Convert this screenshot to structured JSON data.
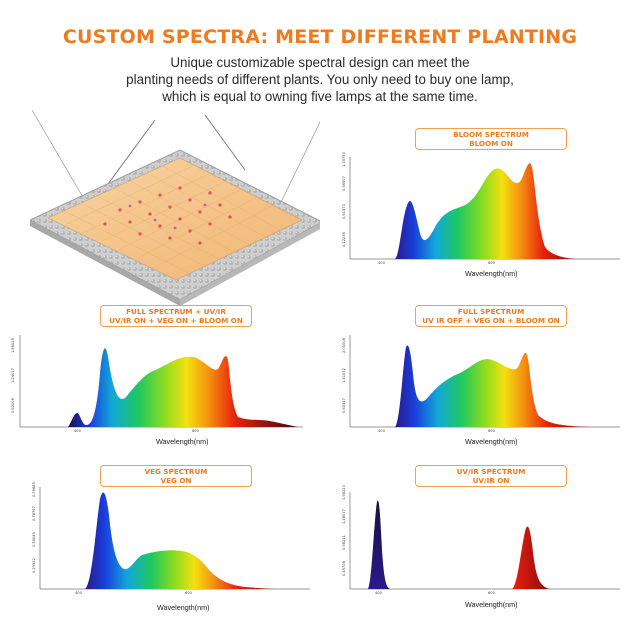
{
  "header": {
    "title": "CUSTOM SPECTRA: MEET DIFFERENT PLANTING",
    "subtitle_lines": [
      "Unique customizable spectral design can meet the",
      "planting needs of different plants. You only need to buy one lamp,",
      "which is equal to owning five lamps at the same time."
    ]
  },
  "colors": {
    "accent": "#f07a1e",
    "label_border": "#f0a050"
  },
  "panels": [
    {
      "id": "bloom",
      "label_lines": [
        "BLOOM SPECTRUM",
        "BLOOM ON"
      ],
      "xlabel": "Wavelength(nm)",
      "xticks": [
        "400",
        "600"
      ],
      "yticks": [
        "0.12236",
        "0.61570",
        "0.96507",
        "1.39750"
      ]
    },
    {
      "id": "full-uvir",
      "label_lines": [
        "FULL SPECTRUM + UV/IR",
        "UV/IR ON + VEG ON + BLOOM ON"
      ],
      "xlabel": "Wavelength(nm)",
      "xticks": [
        "400",
        "600"
      ],
      "yticks": [
        "0.62008",
        "1.24017",
        "1.86025"
      ]
    },
    {
      "id": "full",
      "label_lines": [
        "FULL SPECTRUM",
        "UV IR OFF + VEG ON + BLOOM ON"
      ],
      "xlabel": "Wavelength(nm)",
      "xticks": [
        "400",
        "600"
      ],
      "yticks": [
        "0.60517",
        "1.41032",
        "2.00008"
      ]
    },
    {
      "id": "veg",
      "label_lines": [
        "VEG SPECTRUM",
        "VEG ON"
      ],
      "xlabel": "Wavelength(nm)",
      "xticks": [
        "400",
        "600"
      ],
      "yticks": [
        "0.29522",
        "0.59045",
        "0.78767",
        "0.99689"
      ]
    },
    {
      "id": "uvir",
      "label_lines": [
        "UV/IR SPECTRUM",
        "UV/IR  ON"
      ],
      "xlabel": "Wavelength(nm)",
      "xticks": [
        "400",
        "600"
      ],
      "yticks": [
        "0.49708",
        "0.98211",
        "1.48017",
        "1.98223"
      ]
    }
  ]
}
